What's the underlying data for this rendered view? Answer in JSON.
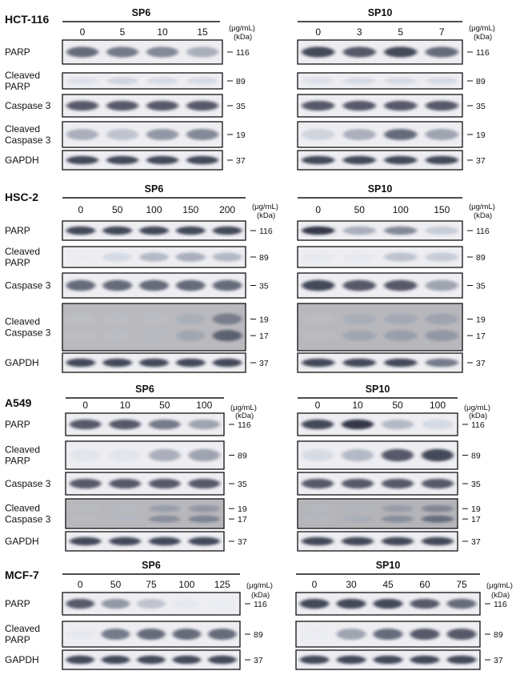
{
  "panels": [
    {
      "cell_line": "HCT-116",
      "unit": "(μg/mL)",
      "kda_label": "(kDa)",
      "rows": [
        {
          "label": [
            "PARP"
          ],
          "kda": [
            "116"
          ]
        },
        {
          "label": [
            "Cleaved",
            "PARP"
          ],
          "kda": [
            "89"
          ]
        },
        {
          "label": [
            "Caspase 3"
          ],
          "kda": [
            "35"
          ]
        },
        {
          "label": [
            "Cleaved",
            "Caspase 3"
          ],
          "kda": [
            "19"
          ]
        },
        {
          "label": [
            "GAPDH"
          ],
          "kda": [
            "37"
          ]
        }
      ],
      "treatments": [
        {
          "drug": "SP6",
          "doses": [
            "0",
            "5",
            "10",
            "15"
          ],
          "bands": [
            [
              0.8,
              0.75,
              0.7,
              0.55
            ],
            [
              0.25,
              0.35,
              0.3,
              0.3
            ],
            [
              0.85,
              0.85,
              0.85,
              0.85
            ],
            [
              0.55,
              0.45,
              0.65,
              0.7
            ],
            [
              0.9,
              0.9,
              0.9,
              0.9
            ]
          ]
        },
        {
          "drug": "SP10",
          "doses": [
            "0",
            "3",
            "5",
            "7"
          ],
          "bands": [
            [
              0.9,
              0.85,
              0.9,
              0.8
            ],
            [
              0.25,
              0.3,
              0.3,
              0.3
            ],
            [
              0.85,
              0.85,
              0.85,
              0.85
            ],
            [
              0.35,
              0.55,
              0.8,
              0.6
            ],
            [
              0.9,
              0.9,
              0.9,
              0.9
            ]
          ]
        }
      ]
    },
    {
      "cell_line": "HSC-2",
      "unit": "(μg/mL)",
      "kda_label": "(kDa)",
      "rows": [
        {
          "label": [
            "PARP"
          ],
          "kda": [
            "116"
          ]
        },
        {
          "label": [
            "Cleaved",
            "PARP"
          ],
          "kda": [
            "89"
          ]
        },
        {
          "label": [
            "Caspase 3"
          ],
          "kda": [
            "35"
          ]
        },
        {
          "label": [
            "Cleaved",
            "Caspase 3"
          ],
          "kda": [
            "19",
            "17"
          ]
        },
        {
          "label": [
            "GAPDH"
          ],
          "kda": [
            "37"
          ]
        }
      ],
      "treatments": [
        {
          "drug": "SP6",
          "doses": [
            "0",
            "50",
            "100",
            "150",
            "200"
          ],
          "bands": [
            [
              0.9,
              0.9,
              0.9,
              0.9,
              0.9
            ],
            [
              0.05,
              0.3,
              0.5,
              0.55,
              0.5
            ],
            [
              0.8,
              0.8,
              0.8,
              0.8,
              0.8
            ],
            [
              0.1,
              0.15,
              0.2,
              0.45,
              0.8
            ],
            [
              0.9,
              0.9,
              0.9,
              0.9,
              0.9
            ]
          ]
        },
        {
          "drug": "SP10",
          "doses": [
            "0",
            "50",
            "100",
            "150"
          ],
          "bands": [
            [
              0.95,
              0.55,
              0.7,
              0.4
            ],
            [
              0.15,
              0.15,
              0.45,
              0.4
            ],
            [
              0.9,
              0.85,
              0.85,
              0.6
            ],
            [
              0.1,
              0.45,
              0.5,
              0.55
            ],
            [
              0.9,
              0.9,
              0.9,
              0.75
            ]
          ]
        }
      ]
    },
    {
      "cell_line": "A549",
      "unit": "(μg/mL)",
      "kda_label": "(kDa)",
      "rows": [
        {
          "label": [
            "PARP"
          ],
          "kda": [
            "116"
          ]
        },
        {
          "label": [
            "Cleaved",
            "PARP"
          ],
          "kda": [
            "89"
          ]
        },
        {
          "label": [
            "Caspase 3"
          ],
          "kda": [
            "35"
          ]
        },
        {
          "label": [
            "Cleaved",
            "Caspase 3"
          ],
          "kda": [
            "19",
            "17"
          ]
        },
        {
          "label": [
            "GAPDH"
          ],
          "kda": [
            "37"
          ]
        }
      ],
      "treatments": [
        {
          "drug": "SP6",
          "doses": [
            "0",
            "10",
            "50",
            "100"
          ],
          "bands": [
            [
              0.85,
              0.85,
              0.75,
              0.6
            ],
            [
              0.2,
              0.2,
              0.55,
              0.6
            ],
            [
              0.85,
              0.85,
              0.85,
              0.85
            ],
            [
              0.15,
              0.25,
              0.6,
              0.65
            ],
            [
              0.9,
              0.9,
              0.9,
              0.9
            ]
          ]
        },
        {
          "drug": "SP10",
          "doses": [
            "0",
            "10",
            "50",
            "100"
          ],
          "bands": [
            [
              0.9,
              0.95,
              0.5,
              0.3
            ],
            [
              0.3,
              0.5,
              0.85,
              0.9
            ],
            [
              0.85,
              0.85,
              0.85,
              0.85
            ],
            [
              0.2,
              0.35,
              0.6,
              0.75
            ],
            [
              0.9,
              0.9,
              0.9,
              0.9
            ]
          ]
        }
      ]
    },
    {
      "cell_line": "MCF-7",
      "unit": "(μg/mL)",
      "kda_label": "(kDa)",
      "rows": [
        {
          "label": [
            "PARP"
          ],
          "kda": [
            "116"
          ]
        },
        {
          "label": [
            "Cleaved",
            "PARP"
          ],
          "kda": [
            "89"
          ]
        },
        {
          "label": [
            "GAPDH"
          ],
          "kda": [
            "37"
          ]
        }
      ],
      "treatments": [
        {
          "drug": "SP6",
          "doses": [
            "0",
            "50",
            "75",
            "100",
            "125"
          ],
          "bands": [
            [
              0.85,
              0.65,
              0.45,
              0.15,
              0.05
            ],
            [
              0.15,
              0.75,
              0.8,
              0.8,
              0.8
            ],
            [
              0.9,
              0.9,
              0.9,
              0.9,
              0.9
            ]
          ]
        },
        {
          "drug": "SP10",
          "doses": [
            "0",
            "30",
            "45",
            "60",
            "75"
          ],
          "bands": [
            [
              0.9,
              0.9,
              0.9,
              0.85,
              0.8
            ],
            [
              0.05,
              0.6,
              0.8,
              0.85,
              0.85
            ],
            [
              0.9,
              0.9,
              0.9,
              0.9,
              0.9
            ]
          ]
        }
      ]
    }
  ]
}
